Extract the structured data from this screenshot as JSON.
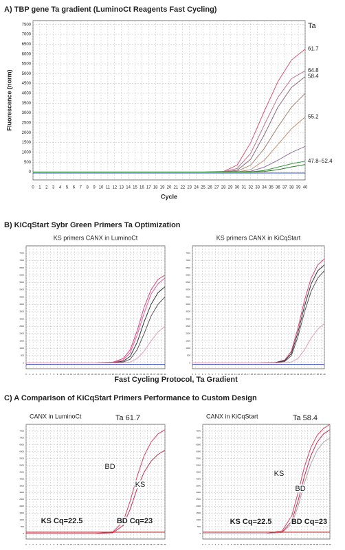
{
  "headings": [
    "A)  TBP gene Ta gradient (LuminoCt Reagents Fast Cycling)",
    "B)  KiCqStart Sybr Green Primers Ta Optimization",
    "C)  A Comparison of KiCqStart Primers Performance to Custom Design"
  ],
  "shared_xlabel": "Fast Cycling Protocol, Ta Gradient",
  "chart_data": [
    {
      "type": "line",
      "xlabel": "Cycle",
      "ylabel": "Fluorescence (norm)",
      "legend": "line-end",
      "legend_title": "Ta",
      "grid": true,
      "x": [
        0,
        5,
        10,
        15,
        20,
        25,
        28,
        30,
        32,
        34,
        36,
        38,
        40
      ],
      "xlim": [
        0,
        40
      ],
      "xticks": [
        0,
        1,
        2,
        3,
        4,
        5,
        6,
        7,
        8,
        9,
        10,
        11,
        12,
        13,
        14,
        15,
        16,
        17,
        18,
        19,
        20,
        21,
        22,
        23,
        24,
        25,
        26,
        27,
        28,
        29,
        30,
        31,
        32,
        33,
        34,
        35,
        36,
        37,
        38,
        39,
        40
      ],
      "ylim": [
        -400,
        7700
      ],
      "yticks": [
        0,
        500,
        1000,
        1500,
        2000,
        2500,
        3000,
        3500,
        4000,
        4500,
        5000,
        5500,
        6000,
        6500,
        7000,
        7500
      ],
      "series": [
        {
          "name": "61.7",
          "color": "#d9506e",
          "values": [
            0,
            0,
            0,
            0,
            0,
            0,
            30,
            350,
            1500,
            3100,
            4600,
            5700,
            6250
          ]
        },
        {
          "name": "64.8",
          "color": "#c07088",
          "values": [
            0,
            0,
            0,
            0,
            0,
            0,
            15,
            180,
            950,
            2400,
            3800,
            4750,
            5150
          ]
        },
        {
          "name": "58.4",
          "color": "#8a6a7a",
          "values": [
            0,
            0,
            0,
            0,
            0,
            0,
            5,
            90,
            650,
            1900,
            3300,
            4300,
            4850
          ]
        },
        {
          "color": "#a08070",
          "values": [
            0,
            0,
            0,
            0,
            0,
            0,
            0,
            40,
            350,
            1200,
            2300,
            3300,
            4000
          ]
        },
        {
          "name": "55.2",
          "color": "#c09070",
          "values": [
            0,
            0,
            0,
            0,
            0,
            0,
            0,
            10,
            120,
            600,
            1400,
            2200,
            2800
          ]
        },
        {
          "color": "#9070a0",
          "values": [
            0,
            0,
            0,
            0,
            0,
            0,
            0,
            0,
            40,
            250,
            600,
            1000,
            1300
          ]
        },
        {
          "name": "47.8–52.4",
          "color": "#3a9a3a",
          "values": [
            0,
            0,
            0,
            0,
            0,
            0,
            0,
            0,
            10,
            80,
            250,
            420,
            550
          ]
        },
        {
          "color": "#2a7a2a",
          "values": [
            0,
            0,
            0,
            0,
            0,
            0,
            0,
            0,
            0,
            30,
            120,
            260,
            380
          ]
        },
        {
          "color": "#3050c0",
          "values": [
            -50,
            -50,
            -50,
            -50,
            -50,
            -50,
            -50,
            -50,
            -50,
            -50,
            -50,
            -50,
            -50
          ]
        }
      ]
    },
    {
      "type": "line",
      "title": "KS primers CANX in LuminoCt",
      "grid": true,
      "x": [
        0,
        5,
        10,
        15,
        20,
        25,
        28,
        30,
        32,
        34,
        36,
        38,
        40
      ],
      "xlim": [
        0,
        40
      ],
      "xticks": [
        0,
        1,
        2,
        3,
        4,
        5,
        6,
        7,
        8,
        9,
        10,
        11,
        12,
        13,
        14,
        15,
        16,
        17,
        18,
        19,
        20,
        21,
        22,
        23,
        24,
        25,
        26,
        27,
        28,
        29,
        30,
        31,
        32,
        33,
        34,
        35,
        36,
        37,
        38,
        39,
        40
      ],
      "ylim": [
        -400,
        8000
      ],
      "yticks": [
        0,
        500,
        1000,
        1500,
        2000,
        2500,
        3000,
        3500,
        4000,
        4500,
        5000,
        5500,
        6000,
        6500,
        7000,
        7500
      ],
      "series": [
        {
          "color": "#d9407a",
          "values": [
            0,
            0,
            0,
            0,
            0,
            50,
            300,
            900,
            2200,
            3800,
            5000,
            5700,
            6000
          ]
        },
        {
          "color": "#e060a0",
          "values": [
            0,
            0,
            0,
            0,
            0,
            30,
            200,
            700,
            1900,
            3400,
            4700,
            5400,
            5800
          ]
        },
        {
          "color": "#333333",
          "values": [
            0,
            0,
            0,
            0,
            0,
            10,
            120,
            450,
            1400,
            2800,
            4000,
            4800,
            5200
          ]
        },
        {
          "color": "#555555",
          "values": [
            0,
            0,
            0,
            0,
            0,
            0,
            60,
            250,
            900,
            2000,
            3200,
            4000,
            4500
          ]
        },
        {
          "color": "#e0a0b8",
          "values": [
            0,
            0,
            0,
            0,
            0,
            0,
            10,
            60,
            300,
            800,
            1500,
            2100,
            2500
          ]
        },
        {
          "color": "#3040b0",
          "values": [
            -100,
            -100,
            -100,
            -100,
            -100,
            -100,
            -100,
            -100,
            -100,
            -100,
            -100,
            -100,
            -100
          ]
        }
      ]
    },
    {
      "type": "line",
      "title": "KS primers CANX in KiCqStart",
      "grid": true,
      "x": [
        0,
        5,
        10,
        15,
        20,
        25,
        28,
        30,
        32,
        34,
        36,
        38,
        40
      ],
      "xlim": [
        0,
        40
      ],
      "xticks": [
        0,
        1,
        2,
        3,
        4,
        5,
        6,
        7,
        8,
        9,
        10,
        11,
        12,
        13,
        14,
        15,
        16,
        17,
        18,
        19,
        20,
        21,
        22,
        23,
        24,
        25,
        26,
        27,
        28,
        29,
        30,
        31,
        32,
        33,
        34,
        35,
        36,
        37,
        38,
        39,
        40
      ],
      "ylim": [
        -400,
        8000
      ],
      "yticks": [
        0,
        500,
        1000,
        1500,
        2000,
        2500,
        3000,
        3500,
        4000,
        4500,
        5000,
        5500,
        6000,
        6500,
        7000,
        7500
      ],
      "series": [
        {
          "color": "#d9407a",
          "values": [
            0,
            0,
            0,
            0,
            0,
            20,
            200,
            800,
            2400,
            4300,
            5800,
            6700,
            7100
          ]
        },
        {
          "color": "#333333",
          "values": [
            0,
            0,
            0,
            0,
            0,
            10,
            150,
            650,
            2100,
            3900,
            5400,
            6300,
            6700
          ]
        },
        {
          "color": "#555555",
          "values": [
            0,
            0,
            0,
            0,
            0,
            5,
            100,
            500,
            1800,
            3500,
            4900,
            5800,
            6300
          ]
        },
        {
          "color": "#e0a0b8",
          "values": [
            0,
            0,
            0,
            0,
            0,
            0,
            10,
            60,
            300,
            900,
            1700,
            2300,
            2700
          ]
        },
        {
          "color": "#3040b0",
          "values": [
            -100,
            -100,
            -100,
            -100,
            -100,
            -100,
            -100,
            -100,
            -100,
            -100,
            -100,
            -100,
            -100
          ]
        }
      ]
    },
    {
      "type": "line",
      "title": "CANX in LuminoCt",
      "grid": true,
      "annotations": [
        "Ta 61.7",
        "BD",
        "KS",
        "KS Cq=22.5",
        "BD Cq=23"
      ],
      "x": [
        0,
        5,
        10,
        15,
        20,
        25,
        28,
        30,
        32,
        34,
        36,
        38,
        40
      ],
      "xlim": [
        0,
        40
      ],
      "xticks": [
        0,
        1,
        2,
        3,
        4,
        5,
        6,
        7,
        8,
        9,
        10,
        11,
        12,
        13,
        14,
        15,
        16,
        17,
        18,
        19,
        20,
        21,
        22,
        23,
        24,
        25,
        26,
        27,
        28,
        29,
        30,
        31,
        32,
        33,
        34,
        35,
        36,
        37,
        38,
        39,
        40
      ],
      "ylim": [
        -400,
        8000
      ],
      "yticks": [
        0,
        500,
        1000,
        1500,
        2000,
        2500,
        3000,
        3500,
        4000,
        4500,
        5000,
        5500,
        6000,
        6500,
        7000,
        7500
      ],
      "series": [
        {
          "color": "#d94060",
          "values": [
            0,
            0,
            0,
            0,
            0,
            120,
            900,
            2400,
            4200,
            5700,
            6700,
            7300,
            7600
          ]
        },
        {
          "color": "#c03050",
          "values": [
            0,
            0,
            0,
            0,
            0,
            60,
            600,
            1800,
            3300,
            4500,
            5300,
            5800,
            6100
          ]
        },
        {
          "color": "#c02020",
          "values": [
            100,
            100,
            100,
            100,
            100,
            100,
            100,
            100,
            100,
            100,
            100,
            100,
            100
          ]
        }
      ]
    },
    {
      "type": "line",
      "title": "CANX in KiCqStart",
      "grid": true,
      "annotations": [
        "Ta 58.4",
        "KS",
        "BD",
        "KS Cq=22.5",
        "BD Cq=23"
      ],
      "x": [
        0,
        5,
        10,
        15,
        20,
        25,
        28,
        30,
        32,
        34,
        36,
        38,
        40
      ],
      "xlim": [
        0,
        40
      ],
      "xticks": [
        0,
        1,
        2,
        3,
        4,
        5,
        6,
        7,
        8,
        9,
        10,
        11,
        12,
        13,
        14,
        15,
        16,
        17,
        18,
        19,
        20,
        21,
        22,
        23,
        24,
        25,
        26,
        27,
        28,
        29,
        30,
        31,
        32,
        33,
        34,
        35,
        36,
        37,
        38,
        39,
        40
      ],
      "ylim": [
        -400,
        8000
      ],
      "yticks": [
        0,
        500,
        1000,
        1500,
        2000,
        2500,
        3000,
        3500,
        4000,
        4500,
        5000,
        5500,
        6000,
        6500,
        7000,
        7500
      ],
      "series": [
        {
          "color": "#d94060",
          "values": [
            0,
            0,
            0,
            0,
            0,
            200,
            1300,
            3000,
            4900,
            6300,
            7200,
            7700,
            8000
          ]
        },
        {
          "color": "#c03050",
          "values": [
            0,
            0,
            0,
            0,
            0,
            120,
            900,
            2400,
            4200,
            5700,
            6700,
            7300,
            7600
          ]
        },
        {
          "color": "#b0a0a8",
          "values": [
            0,
            0,
            0,
            0,
            0,
            80,
            700,
            2000,
            3700,
            5100,
            6100,
            6700,
            7000
          ]
        },
        {
          "color": "#c02020",
          "values": [
            100,
            100,
            100,
            100,
            100,
            100,
            100,
            100,
            100,
            100,
            100,
            100,
            100
          ]
        }
      ]
    }
  ]
}
